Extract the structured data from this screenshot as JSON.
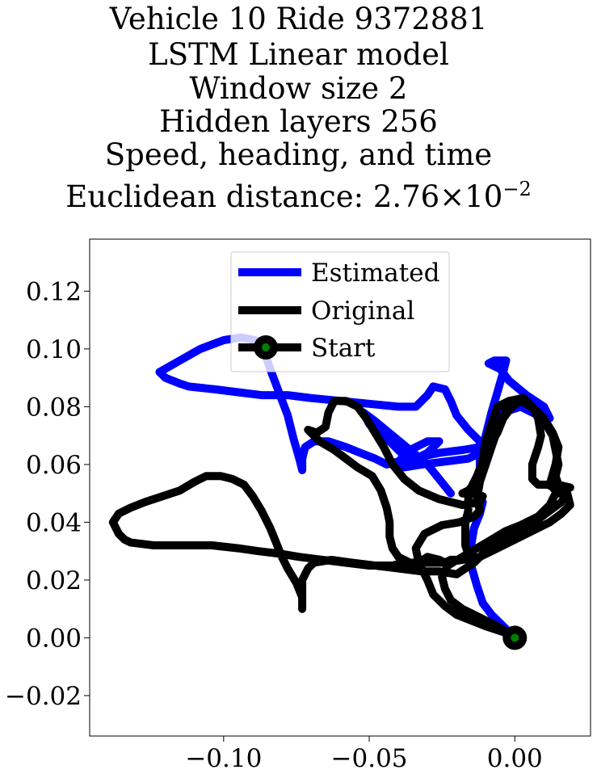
{
  "chart_data": {
    "type": "line",
    "title_lines": [
      "Vehicle 10 Ride 9372881",
      "LSTM Linear model",
      "Window size 2",
      "Hidden layers 256",
      "Speed, heading, and time"
    ],
    "distance_prefix": "Euclidean distance: 2.76",
    "distance_times": "×",
    "distance_base": "10",
    "distance_exp": "−2",
    "xlim": [
      -0.146,
      0.026
    ],
    "ylim": [
      -0.034,
      0.138
    ],
    "xticks": [
      {
        "value": -0.1,
        "label": "−0.10"
      },
      {
        "value": -0.05,
        "label": "−0.05"
      },
      {
        "value": 0.0,
        "label": "0.00"
      }
    ],
    "yticks": [
      {
        "value": 0.12,
        "label": "0.12"
      },
      {
        "value": 0.1,
        "label": "0.10"
      },
      {
        "value": 0.08,
        "label": "0.08"
      },
      {
        "value": 0.06,
        "label": "0.06"
      },
      {
        "value": 0.04,
        "label": "0.04"
      },
      {
        "value": 0.02,
        "label": "0.02"
      },
      {
        "value": 0.0,
        "label": "0.00"
      },
      {
        "value": -0.02,
        "label": "−0.02"
      }
    ],
    "legend_position": "upper-center",
    "series": [
      {
        "name": "Estimated",
        "color": "#0000ff",
        "points": [
          [
            0.0,
            0.0
          ],
          [
            -0.004,
            0.004
          ],
          [
            -0.008,
            0.008
          ],
          [
            -0.011,
            0.012
          ],
          [
            -0.013,
            0.018
          ],
          [
            -0.015,
            0.025
          ],
          [
            -0.015,
            0.032
          ],
          [
            -0.014,
            0.038
          ],
          [
            -0.012,
            0.043
          ],
          [
            -0.011,
            0.047
          ],
          [
            -0.013,
            0.05
          ],
          [
            -0.012,
            0.055
          ],
          [
            -0.012,
            0.062
          ],
          [
            -0.01,
            0.07
          ],
          [
            -0.008,
            0.078
          ],
          [
            -0.006,
            0.085
          ],
          [
            -0.004,
            0.092
          ],
          [
            -0.003,
            0.096
          ],
          [
            -0.007,
            0.096
          ],
          [
            -0.009,
            0.095
          ],
          [
            -0.005,
            0.093
          ],
          [
            -0.002,
            0.089
          ],
          [
            0.004,
            0.084
          ],
          [
            0.01,
            0.08
          ],
          [
            0.012,
            0.076
          ],
          [
            0.008,
            0.077
          ],
          [
            0.002,
            0.08
          ],
          [
            -0.004,
            0.078
          ],
          [
            -0.007,
            0.073
          ],
          [
            -0.009,
            0.068
          ],
          [
            -0.012,
            0.066
          ],
          [
            -0.018,
            0.065
          ],
          [
            -0.026,
            0.064
          ],
          [
            -0.036,
            0.062
          ],
          [
            -0.044,
            0.06
          ],
          [
            -0.048,
            0.062
          ],
          [
            -0.053,
            0.064
          ],
          [
            -0.058,
            0.066
          ],
          [
            -0.064,
            0.068
          ],
          [
            -0.069,
            0.068
          ],
          [
            -0.072,
            0.066
          ],
          [
            -0.073,
            0.062
          ],
          [
            -0.073,
            0.058
          ],
          [
            -0.074,
            0.062
          ],
          [
            -0.076,
            0.069
          ],
          [
            -0.078,
            0.077
          ],
          [
            -0.081,
            0.085
          ],
          [
            -0.084,
            0.093
          ],
          [
            -0.086,
            0.099
          ],
          [
            -0.089,
            0.103
          ],
          [
            -0.094,
            0.104
          ],
          [
            -0.1,
            0.103
          ],
          [
            -0.108,
            0.1
          ],
          [
            -0.115,
            0.096
          ],
          [
            -0.122,
            0.092
          ],
          [
            -0.12,
            0.09
          ],
          [
            -0.115,
            0.088
          ],
          [
            -0.112,
            0.087
          ],
          [
            -0.103,
            0.086
          ],
          [
            -0.095,
            0.085
          ],
          [
            -0.087,
            0.084
          ],
          [
            -0.078,
            0.084
          ],
          [
            -0.07,
            0.083
          ],
          [
            -0.06,
            0.082
          ],
          [
            -0.05,
            0.081
          ],
          [
            -0.04,
            0.08
          ],
          [
            -0.034,
            0.08
          ],
          [
            -0.03,
            0.084
          ],
          [
            -0.028,
            0.087
          ],
          [
            -0.024,
            0.086
          ],
          [
            -0.022,
            0.082
          ],
          [
            -0.02,
            0.077
          ],
          [
            -0.016,
            0.072
          ],
          [
            -0.012,
            0.068
          ],
          [
            -0.012,
            0.064
          ],
          [
            -0.016,
            0.062
          ],
          [
            -0.024,
            0.061
          ],
          [
            -0.032,
            0.06
          ],
          [
            -0.038,
            0.059
          ],
          [
            -0.04,
            0.061
          ],
          [
            -0.036,
            0.065
          ],
          [
            -0.03,
            0.068
          ],
          [
            -0.026,
            0.068
          ],
          [
            -0.03,
            0.064
          ],
          [
            -0.036,
            0.061
          ],
          [
            -0.043,
            0.068
          ],
          [
            -0.05,
            0.074
          ],
          [
            -0.052,
            0.078
          ],
          [
            -0.048,
            0.075
          ],
          [
            -0.042,
            0.07
          ],
          [
            -0.036,
            0.065
          ],
          [
            -0.03,
            0.06
          ],
          [
            -0.026,
            0.055
          ],
          [
            -0.022,
            0.05
          ]
        ]
      },
      {
        "name": "Original",
        "color": "#000000",
        "points": [
          [
            0.0,
            0.0
          ],
          [
            -0.006,
            0.004
          ],
          [
            -0.012,
            0.007
          ],
          [
            -0.018,
            0.01
          ],
          [
            -0.022,
            0.013
          ],
          [
            -0.024,
            0.017
          ],
          [
            -0.025,
            0.021
          ],
          [
            -0.023,
            0.025
          ],
          [
            -0.018,
            0.028
          ],
          [
            -0.013,
            0.031
          ],
          [
            -0.008,
            0.034
          ],
          [
            -0.003,
            0.037
          ],
          [
            0.002,
            0.039
          ],
          [
            0.008,
            0.042
          ],
          [
            0.012,
            0.046
          ],
          [
            0.014,
            0.05
          ],
          [
            0.016,
            0.052
          ],
          [
            0.019,
            0.052
          ],
          [
            0.015,
            0.053
          ],
          [
            0.014,
            0.056
          ],
          [
            0.015,
            0.06
          ],
          [
            0.014,
            0.065
          ],
          [
            0.013,
            0.07
          ],
          [
            0.01,
            0.075
          ],
          [
            0.007,
            0.079
          ],
          [
            0.004,
            0.081
          ],
          [
            0.002,
            0.082
          ],
          [
            -0.001,
            0.08
          ],
          [
            -0.004,
            0.076
          ],
          [
            -0.006,
            0.071
          ],
          [
            -0.009,
            0.066
          ],
          [
            -0.011,
            0.061
          ],
          [
            -0.013,
            0.056
          ],
          [
            -0.015,
            0.052
          ],
          [
            -0.016,
            0.048
          ],
          [
            -0.016,
            0.044
          ],
          [
            -0.017,
            0.04
          ],
          [
            -0.017,
            0.036
          ],
          [
            -0.017,
            0.032
          ],
          [
            -0.016,
            0.029
          ],
          [
            -0.019,
            0.027
          ],
          [
            -0.022,
            0.027
          ],
          [
            -0.024,
            0.026
          ],
          [
            -0.026,
            0.027
          ],
          [
            -0.03,
            0.028
          ],
          [
            -0.033,
            0.026
          ],
          [
            -0.036,
            0.024
          ],
          [
            -0.038,
            0.026
          ],
          [
            -0.042,
            0.025
          ],
          [
            -0.05,
            0.025
          ],
          [
            -0.058,
            0.026
          ],
          [
            -0.066,
            0.027
          ],
          [
            -0.074,
            0.028
          ],
          [
            -0.08,
            0.029
          ],
          [
            -0.088,
            0.03
          ],
          [
            -0.095,
            0.031
          ],
          [
            -0.104,
            0.032
          ],
          [
            -0.114,
            0.032
          ],
          [
            -0.124,
            0.032
          ],
          [
            -0.132,
            0.033
          ],
          [
            -0.134,
            0.034
          ],
          [
            -0.136,
            0.036
          ],
          [
            -0.138,
            0.04
          ],
          [
            -0.136,
            0.043
          ],
          [
            -0.132,
            0.045
          ],
          [
            -0.127,
            0.047
          ],
          [
            -0.121,
            0.049
          ],
          [
            -0.115,
            0.051
          ],
          [
            -0.11,
            0.054
          ],
          [
            -0.106,
            0.056
          ],
          [
            -0.101,
            0.056
          ],
          [
            -0.097,
            0.055
          ],
          [
            -0.093,
            0.053
          ],
          [
            -0.09,
            0.049
          ],
          [
            -0.087,
            0.044
          ],
          [
            -0.084,
            0.038
          ],
          [
            -0.082,
            0.033
          ],
          [
            -0.08,
            0.028
          ],
          [
            -0.078,
            0.024
          ],
          [
            -0.075,
            0.019
          ],
          [
            -0.073,
            0.014
          ],
          [
            -0.073,
            0.01
          ],
          [
            -0.073,
            0.015
          ],
          [
            -0.073,
            0.02
          ],
          [
            -0.071,
            0.024
          ],
          [
            -0.069,
            0.026
          ],
          [
            -0.063,
            0.027
          ],
          [
            -0.056,
            0.026
          ],
          [
            -0.048,
            0.025
          ],
          [
            -0.04,
            0.024
          ],
          [
            -0.032,
            0.023
          ],
          [
            -0.026,
            0.023
          ],
          [
            -0.02,
            0.022
          ],
          [
            -0.014,
            0.026
          ],
          [
            -0.01,
            0.03
          ],
          [
            -0.004,
            0.034
          ],
          [
            0.002,
            0.037
          ],
          [
            0.008,
            0.041
          ],
          [
            0.012,
            0.044
          ],
          [
            0.016,
            0.047
          ],
          [
            0.018,
            0.05
          ],
          [
            0.015,
            0.05
          ],
          [
            0.012,
            0.053
          ],
          [
            0.014,
            0.06
          ],
          [
            0.015,
            0.066
          ],
          [
            0.013,
            0.071
          ],
          [
            0.01,
            0.076
          ],
          [
            0.006,
            0.08
          ],
          [
            0.003,
            0.083
          ],
          [
            -0.002,
            0.082
          ],
          [
            -0.006,
            0.08
          ],
          [
            -0.008,
            0.074
          ],
          [
            -0.01,
            0.068
          ],
          [
            -0.011,
            0.062
          ],
          [
            -0.012,
            0.057
          ],
          [
            -0.014,
            0.053
          ],
          [
            -0.016,
            0.051
          ],
          [
            -0.018,
            0.05
          ],
          [
            -0.014,
            0.05
          ],
          [
            -0.011,
            0.049
          ],
          [
            -0.012,
            0.047
          ],
          [
            -0.018,
            0.046
          ],
          [
            -0.026,
            0.048
          ],
          [
            -0.033,
            0.051
          ],
          [
            -0.038,
            0.055
          ],
          [
            -0.042,
            0.06
          ],
          [
            -0.045,
            0.066
          ],
          [
            -0.048,
            0.071
          ],
          [
            -0.051,
            0.076
          ],
          [
            -0.054,
            0.08
          ],
          [
            -0.058,
            0.082
          ],
          [
            -0.062,
            0.082
          ],
          [
            -0.064,
            0.078
          ],
          [
            -0.065,
            0.073
          ],
          [
            -0.068,
            0.071
          ],
          [
            -0.071,
            0.072
          ],
          [
            -0.067,
            0.068
          ],
          [
            -0.062,
            0.065
          ],
          [
            -0.058,
            0.062
          ],
          [
            -0.054,
            0.059
          ],
          [
            -0.049,
            0.056
          ],
          [
            -0.046,
            0.051
          ],
          [
            -0.044,
            0.045
          ],
          [
            -0.043,
            0.04
          ],
          [
            -0.043,
            0.035
          ],
          [
            -0.042,
            0.031
          ],
          [
            -0.04,
            0.028
          ],
          [
            -0.036,
            0.026
          ],
          [
            -0.03,
            0.026
          ],
          [
            -0.024,
            0.026
          ],
          [
            -0.018,
            0.027
          ],
          [
            -0.012,
            0.028
          ],
          [
            -0.006,
            0.031
          ],
          [
            0.0,
            0.034
          ],
          [
            0.006,
            0.037
          ],
          [
            0.012,
            0.04
          ],
          [
            0.016,
            0.043
          ],
          [
            0.019,
            0.046
          ],
          [
            0.018,
            0.05
          ],
          [
            0.015,
            0.052
          ],
          [
            0.011,
            0.053
          ],
          [
            0.008,
            0.053
          ],
          [
            0.006,
            0.055
          ],
          [
            0.006,
            0.06
          ],
          [
            0.008,
            0.066
          ],
          [
            0.009,
            0.07
          ],
          [
            0.008,
            0.076
          ],
          [
            0.006,
            0.08
          ],
          [
            0.003,
            0.083
          ],
          [
            0.0,
            0.082
          ],
          [
            -0.003,
            0.079
          ],
          [
            -0.006,
            0.072
          ],
          [
            -0.008,
            0.066
          ],
          [
            -0.01,
            0.06
          ],
          [
            -0.012,
            0.054
          ],
          [
            -0.013,
            0.048
          ],
          [
            -0.012,
            0.044
          ],
          [
            -0.014,
            0.042
          ],
          [
            -0.019,
            0.04
          ],
          [
            -0.025,
            0.039
          ],
          [
            -0.031,
            0.036
          ],
          [
            -0.034,
            0.031
          ],
          [
            -0.033,
            0.026
          ],
          [
            -0.03,
            0.02
          ],
          [
            -0.028,
            0.015
          ],
          [
            -0.024,
            0.011
          ],
          [
            -0.02,
            0.008
          ],
          [
            -0.015,
            0.006
          ],
          [
            -0.01,
            0.004
          ],
          [
            -0.004,
            0.002
          ],
          [
            0.0,
            0.0
          ]
        ]
      }
    ],
    "start": {
      "name": "Start",
      "point": [
        0.0,
        0.0
      ],
      "outer_color": "#000000",
      "inner_color": "#008000"
    }
  }
}
